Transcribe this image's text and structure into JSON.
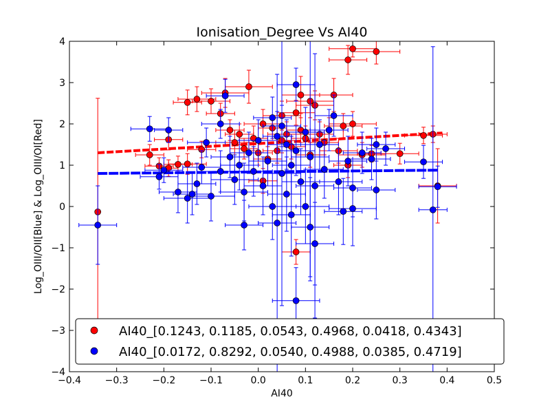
{
  "chart_data": {
    "type": "scatter",
    "title": "Ionisation_Degree Vs AI40",
    "xlabel": "AI40",
    "ylabel": "Log_OIII/OII[Blue] & Log_OIII/OI[Red]",
    "xlim": [
      -0.4,
      0.5
    ],
    "ylim": [
      -4,
      4
    ],
    "x_ticks": [
      -0.4,
      -0.3,
      -0.2,
      -0.1,
      0.0,
      0.1,
      0.2,
      0.3,
      0.4,
      0.5
    ],
    "x_tick_labels": [
      "−0.4",
      "−0.3",
      "−0.2",
      "−0.1",
      "0.0",
      "0.1",
      "0.2",
      "0.3",
      "0.4",
      "0.5"
    ],
    "y_ticks": [
      -4,
      -3,
      -2,
      -1,
      0,
      1,
      2,
      3,
      4
    ],
    "y_tick_labels": [
      "−4",
      "−3",
      "−2",
      "−1",
      "0",
      "1",
      "2",
      "3",
      "4"
    ],
    "grid": false,
    "legend_position": "lower-right",
    "series": [
      {
        "name": "AI40_[0.1243, 0.1185, 0.0543, 0.4968, 0.0418, 0.4343]",
        "color": "#ff0000",
        "fit_line": {
          "x": [
            -0.34,
            0.39
          ],
          "y": [
            1.3,
            1.78
          ]
        },
        "points": [
          {
            "x": -0.34,
            "y": -0.13,
            "xerr": 0.0,
            "yerr": 2.75
          },
          {
            "x": -0.23,
            "y": 1.25,
            "xerr": 0.03,
            "yerr": 0.25
          },
          {
            "x": -0.21,
            "y": 0.98,
            "xerr": 0.03,
            "yerr": 0.2
          },
          {
            "x": -0.19,
            "y": 1.62,
            "xerr": 0.03,
            "yerr": 0.25
          },
          {
            "x": -0.19,
            "y": 0.93,
            "xerr": 0.02,
            "yerr": 0.2
          },
          {
            "x": -0.17,
            "y": 1.02,
            "xerr": 0.03,
            "yerr": 0.2
          },
          {
            "x": -0.15,
            "y": 2.52,
            "xerr": 0.03,
            "yerr": 0.3
          },
          {
            "x": -0.15,
            "y": 1.03,
            "xerr": 0.04,
            "yerr": 0.25
          },
          {
            "x": -0.13,
            "y": 2.6,
            "xerr": 0.04,
            "yerr": 0.3
          },
          {
            "x": -0.12,
            "y": 1.38,
            "xerr": 0.03,
            "yerr": 0.2
          },
          {
            "x": -0.1,
            "y": 2.55,
            "xerr": 0.04,
            "yerr": 0.3
          },
          {
            "x": -0.08,
            "y": 2.25,
            "xerr": 0.03,
            "yerr": 0.25
          },
          {
            "x": -0.07,
            "y": 2.75,
            "xerr": 0.05,
            "yerr": 0.35
          },
          {
            "x": -0.06,
            "y": 1.85,
            "xerr": 0.03,
            "yerr": 0.25
          },
          {
            "x": -0.05,
            "y": 1.55,
            "xerr": 0.04,
            "yerr": 0.3
          },
          {
            "x": -0.04,
            "y": 1.75,
            "xerr": 0.03,
            "yerr": 0.25
          },
          {
            "x": -0.03,
            "y": 1.4,
            "xerr": 0.03,
            "yerr": 0.25
          },
          {
            "x": -0.02,
            "y": 2.9,
            "xerr": 0.05,
            "yerr": 0.4
          },
          {
            "x": -0.01,
            "y": 1.65,
            "xerr": 0.03,
            "yerr": 0.3
          },
          {
            "x": 0.0,
            "y": 1.3,
            "xerr": 0.03,
            "yerr": 0.3
          },
          {
            "x": 0.01,
            "y": 2.0,
            "xerr": 0.04,
            "yerr": 0.35
          },
          {
            "x": 0.01,
            "y": 0.62,
            "xerr": 0.03,
            "yerr": 0.3
          },
          {
            "x": 0.02,
            "y": 1.15,
            "xerr": 0.03,
            "yerr": 0.3
          },
          {
            "x": 0.03,
            "y": 1.9,
            "xerr": 0.03,
            "yerr": 0.3
          },
          {
            "x": 0.04,
            "y": 1.35,
            "xerr": 0.03,
            "yerr": 0.3
          },
          {
            "x": 0.05,
            "y": 2.2,
            "xerr": 0.04,
            "yerr": 0.35
          },
          {
            "x": 0.05,
            "y": 1.6,
            "xerr": 0.03,
            "yerr": 0.3
          },
          {
            "x": 0.06,
            "y": 1.75,
            "xerr": 0.04,
            "yerr": 0.3
          },
          {
            "x": 0.07,
            "y": 1.45,
            "xerr": 0.03,
            "yerr": 0.3
          },
          {
            "x": 0.08,
            "y": 2.27,
            "xerr": 0.04,
            "yerr": 0.3
          },
          {
            "x": 0.08,
            "y": -1.1,
            "xerr": 0.03,
            "yerr": 0.3
          },
          {
            "x": 0.09,
            "y": 1.85,
            "xerr": 0.03,
            "yerr": 0.3
          },
          {
            "x": 0.09,
            "y": 2.7,
            "xerr": 0.04,
            "yerr": 0.45
          },
          {
            "x": 0.1,
            "y": 1.65,
            "xerr": 0.03,
            "yerr": 0.3
          },
          {
            "x": 0.11,
            "y": 1.25,
            "xerr": 0.03,
            "yerr": 0.3
          },
          {
            "x": 0.11,
            "y": 2.55,
            "xerr": 0.05,
            "yerr": 0.4
          },
          {
            "x": 0.12,
            "y": 2.45,
            "xerr": 0.04,
            "yerr": 0.35
          },
          {
            "x": 0.13,
            "y": 1.75,
            "xerr": 0.03,
            "yerr": 0.3
          },
          {
            "x": 0.14,
            "y": 1.55,
            "xerr": 0.03,
            "yerr": 0.3
          },
          {
            "x": 0.15,
            "y": 1.85,
            "xerr": 0.03,
            "yerr": 0.3
          },
          {
            "x": 0.16,
            "y": 2.7,
            "xerr": 0.04,
            "yerr": 0.4
          },
          {
            "x": 0.17,
            "y": 1.35,
            "xerr": 0.04,
            "yerr": 0.3
          },
          {
            "x": 0.18,
            "y": 1.95,
            "xerr": 0.04,
            "yerr": 0.3
          },
          {
            "x": 0.19,
            "y": 3.55,
            "xerr": 0.04,
            "yerr": 0.35
          },
          {
            "x": 0.19,
            "y": 1.0,
            "xerr": 0.03,
            "yerr": 0.3
          },
          {
            "x": 0.2,
            "y": 3.82,
            "xerr": 0.05,
            "yerr": 0.2
          },
          {
            "x": 0.2,
            "y": 2.0,
            "xerr": 0.05,
            "yerr": 0.3
          },
          {
            "x": 0.22,
            "y": 1.25,
            "xerr": 0.05,
            "yerr": 0.3
          },
          {
            "x": 0.25,
            "y": 3.75,
            "xerr": 0.05,
            "yerr": 0.3
          },
          {
            "x": 0.24,
            "y": 1.28,
            "xerr": 0.03,
            "yerr": 0.2
          },
          {
            "x": 0.3,
            "y": 1.28,
            "xerr": 0.04,
            "yerr": 0.25
          },
          {
            "x": 0.35,
            "y": 1.72,
            "xerr": 0.04,
            "yerr": 0.2
          },
          {
            "x": 0.37,
            "y": 1.75,
            "xerr": 0.03,
            "yerr": 0.2
          },
          {
            "x": 0.38,
            "y": 0.5,
            "xerr": 0.04,
            "yerr": 0.9
          }
        ]
      },
      {
        "name": "AI40_[0.0172, 0.8292, 0.0540, 0.4988, 0.0385, 0.4719]",
        "color": "#0000ff",
        "fit_line": {
          "x": [
            -0.34,
            0.38
          ],
          "y": [
            0.8,
            0.88
          ]
        },
        "points": [
          {
            "x": -0.34,
            "y": -0.45,
            "xerr": 0.04,
            "yerr": 0.95
          },
          {
            "x": -0.23,
            "y": 1.88,
            "xerr": 0.04,
            "yerr": 0.3
          },
          {
            "x": -0.21,
            "y": 0.72,
            "xerr": 0.04,
            "yerr": 0.3
          },
          {
            "x": -0.2,
            "y": 0.88,
            "xerr": 0.04,
            "yerr": 0.3
          },
          {
            "x": -0.19,
            "y": 1.85,
            "xerr": 0.03,
            "yerr": 0.3
          },
          {
            "x": -0.17,
            "y": 0.35,
            "xerr": 0.04,
            "yerr": 0.5
          },
          {
            "x": -0.15,
            "y": 0.2,
            "xerr": 0.05,
            "yerr": 0.6
          },
          {
            "x": -0.14,
            "y": 0.3,
            "xerr": 0.04,
            "yerr": 0.5
          },
          {
            "x": -0.13,
            "y": 0.55,
            "xerr": 0.04,
            "yerr": 0.5
          },
          {
            "x": -0.12,
            "y": 0.95,
            "xerr": 0.04,
            "yerr": 0.4
          },
          {
            "x": -0.11,
            "y": 1.55,
            "xerr": 0.04,
            "yerr": 0.35
          },
          {
            "x": -0.1,
            "y": 0.25,
            "xerr": 0.05,
            "yerr": 0.6
          },
          {
            "x": -0.08,
            "y": 2.0,
            "xerr": 0.04,
            "yerr": 0.35
          },
          {
            "x": -0.08,
            "y": 0.85,
            "xerr": 0.05,
            "yerr": 0.5
          },
          {
            "x": -0.07,
            "y": 2.68,
            "xerr": 0.04,
            "yerr": 0.4
          },
          {
            "x": -0.06,
            "y": 1.2,
            "xerr": 0.04,
            "yerr": 0.5
          },
          {
            "x": -0.05,
            "y": 0.65,
            "xerr": 0.05,
            "yerr": 0.6
          },
          {
            "x": -0.04,
            "y": 1.0,
            "xerr": 0.04,
            "yerr": 0.6
          },
          {
            "x": -0.03,
            "y": 0.35,
            "xerr": 0.05,
            "yerr": 0.7
          },
          {
            "x": -0.03,
            "y": -0.45,
            "xerr": 0.04,
            "yerr": 0.6
          },
          {
            "x": -0.02,
            "y": 1.3,
            "xerr": 0.04,
            "yerr": 0.5
          },
          {
            "x": -0.01,
            "y": 0.85,
            "xerr": 0.04,
            "yerr": 0.6
          },
          {
            "x": 0.0,
            "y": 1.6,
            "xerr": 0.04,
            "yerr": 0.5
          },
          {
            "x": 0.01,
            "y": 0.5,
            "xerr": 0.04,
            "yerr": 0.7
          },
          {
            "x": 0.02,
            "y": 1.1,
            "xerr": 0.04,
            "yerr": 0.6
          },
          {
            "x": 0.03,
            "y": 2.15,
            "xerr": 0.04,
            "yerr": 0.5
          },
          {
            "x": 0.03,
            "y": 0.0,
            "xerr": 0.05,
            "yerr": 0.8
          },
          {
            "x": 0.04,
            "y": 1.7,
            "xerr": 0.03,
            "yerr": 0.6
          },
          {
            "x": 0.04,
            "y": -0.4,
            "xerr": 0.04,
            "yerr": 3.6
          },
          {
            "x": 0.05,
            "y": 1.95,
            "xerr": 0.04,
            "yerr": 0.5
          },
          {
            "x": 0.05,
            "y": 0.8,
            "xerr": 0.04,
            "yerr": 3.2
          },
          {
            "x": 0.06,
            "y": 1.5,
            "xerr": 0.04,
            "yerr": 0.6
          },
          {
            "x": 0.06,
            "y": 0.3,
            "xerr": 0.04,
            "yerr": 0.9
          },
          {
            "x": 0.07,
            "y": 1.0,
            "xerr": 0.04,
            "yerr": 0.7
          },
          {
            "x": 0.07,
            "y": -0.2,
            "xerr": 0.04,
            "yerr": 1.0
          },
          {
            "x": 0.08,
            "y": 2.95,
            "xerr": 0.04,
            "yerr": 0.4
          },
          {
            "x": 0.08,
            "y": 1.35,
            "xerr": 0.04,
            "yerr": 0.6
          },
          {
            "x": 0.08,
            "y": -2.28,
            "xerr": 0.05,
            "yerr": 0.8
          },
          {
            "x": 0.09,
            "y": 0.6,
            "xerr": 0.04,
            "yerr": 0.8
          },
          {
            "x": 0.1,
            "y": 1.8,
            "xerr": 0.04,
            "yerr": 0.6
          },
          {
            "x": 0.1,
            "y": 0.0,
            "xerr": 0.05,
            "yerr": 0.9
          },
          {
            "x": 0.11,
            "y": 1.2,
            "xerr": 0.04,
            "yerr": 3.0
          },
          {
            "x": 0.11,
            "y": -0.5,
            "xerr": 0.04,
            "yerr": 1.2
          },
          {
            "x": 0.12,
            "y": -0.9,
            "xerr": 0.04,
            "yerr": 1.0
          },
          {
            "x": 0.12,
            "y": 0.5,
            "xerr": 0.04,
            "yerr": 3.2
          },
          {
            "x": 0.13,
            "y": 1.5,
            "xerr": 0.04,
            "yerr": 0.6
          },
          {
            "x": 0.14,
            "y": 0.9,
            "xerr": 0.04,
            "yerr": 0.7
          },
          {
            "x": 0.15,
            "y": 1.85,
            "xerr": 0.04,
            "yerr": 0.5
          },
          {
            "x": 0.16,
            "y": 2.2,
            "xerr": 0.04,
            "yerr": 0.5
          },
          {
            "x": 0.17,
            "y": 0.6,
            "xerr": 0.05,
            "yerr": 0.8
          },
          {
            "x": 0.18,
            "y": -0.12,
            "xerr": 0.04,
            "yerr": 0.8
          },
          {
            "x": 0.19,
            "y": 1.1,
            "xerr": 0.04,
            "yerr": 0.6
          },
          {
            "x": 0.2,
            "y": 0.45,
            "xerr": 0.04,
            "yerr": 0.7
          },
          {
            "x": 0.2,
            "y": -0.05,
            "xerr": 0.05,
            "yerr": 0.9
          },
          {
            "x": 0.22,
            "y": 1.3,
            "xerr": 0.04,
            "yerr": 0.5
          },
          {
            "x": 0.24,
            "y": 1.15,
            "xerr": 0.04,
            "yerr": 0.5
          },
          {
            "x": 0.25,
            "y": 1.5,
            "xerr": 0.04,
            "yerr": 0.4
          },
          {
            "x": 0.25,
            "y": 0.4,
            "xerr": 0.04,
            "yerr": 0.7
          },
          {
            "x": 0.27,
            "y": 1.4,
            "xerr": 0.04,
            "yerr": 0.4
          },
          {
            "x": 0.35,
            "y": 1.08,
            "xerr": 0.04,
            "yerr": 0.4
          },
          {
            "x": 0.37,
            "y": -0.08,
            "xerr": 0.03,
            "yerr": 3.95
          },
          {
            "x": 0.38,
            "y": 0.48,
            "xerr": 0.04,
            "yerr": 0.5
          }
        ]
      }
    ]
  }
}
